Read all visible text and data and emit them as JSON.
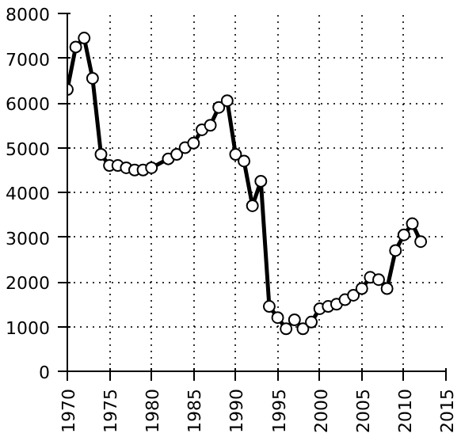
{
  "chart_data": {
    "type": "line",
    "x": [
      1970,
      1971,
      1972,
      1973,
      1974,
      1975,
      1976,
      1977,
      1978,
      1979,
      1980,
      1982,
      1983,
      1984,
      1985,
      1986,
      1987,
      1988,
      1989,
      1990,
      1991,
      1992,
      1993,
      1994,
      1995,
      1996,
      1997,
      1998,
      1999,
      2000,
      2001,
      2002,
      2003,
      2004,
      2005,
      2006,
      2007,
      2008,
      2009,
      2010,
      2011,
      2012
    ],
    "series": [
      {
        "color": "#000000",
        "values": [
          6300,
          7250,
          7450,
          6550,
          4850,
          4600,
          4600,
          4550,
          4500,
          4500,
          4550,
          4750,
          4850,
          5000,
          5100,
          5400,
          5500,
          5900,
          6050,
          4850,
          4700,
          3700,
          4250,
          1450,
          1200,
          950,
          1150,
          950,
          1100,
          1400,
          1450,
          1500,
          1600,
          1700,
          1850,
          2100,
          2050,
          1850,
          2700,
          3050,
          3300,
          2900
        ]
      }
    ],
    "xlim": [
      1970,
      2015
    ],
    "xticks": [
      1970,
      1975,
      1980,
      1985,
      1990,
      1995,
      2000,
      2005,
      2010,
      2015
    ],
    "ylim": [
      0,
      8000
    ],
    "yticks": [
      0,
      1000,
      2000,
      3000,
      4000,
      5000,
      6000,
      7000,
      8000
    ],
    "grid": true,
    "marker": "circle",
    "line_style": "solid"
  }
}
